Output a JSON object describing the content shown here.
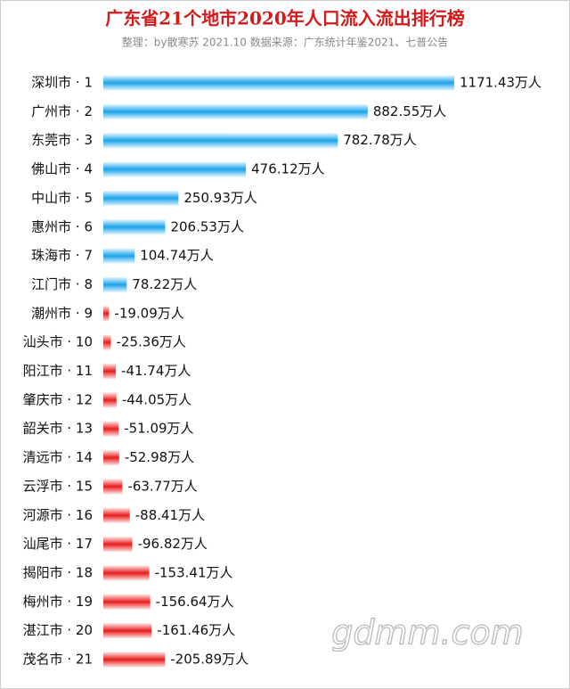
{
  "chart_data": {
    "type": "bar",
    "orientation": "horizontal",
    "title": "广东省21个地市2020年人口流入流出排行榜",
    "subtitle": "整理：by散寒苏  2021.10  数据来源：广东统计年鉴2021、七普公告",
    "watermark": "gdmm.com",
    "categories": [
      "深圳市 · 1",
      "广州市 · 2",
      "东莞市 · 3",
      "佛山市 · 4",
      "中山市 · 5",
      "惠州市 · 6",
      "珠海市 · 7",
      "江门市 · 8",
      "潮州市 · 9",
      "汕头市 · 10",
      "阳江市 · 11",
      "肇庆市 · 12",
      "韶关市 · 13",
      "清远市 · 14",
      "云浮市 · 15",
      "河源市 · 16",
      "汕尾市 · 17",
      "揭阳市 · 18",
      "梅州市 · 19",
      "湛江市 · 20",
      "茂名市 · 21"
    ],
    "values": [
      1171.43,
      882.55,
      782.78,
      476.12,
      250.93,
      206.53,
      104.74,
      78.22,
      -19.09,
      -25.36,
      -41.74,
      -44.05,
      -51.09,
      -52.98,
      -63.77,
      -88.41,
      -96.82,
      -153.41,
      -156.64,
      -161.46,
      -205.89
    ],
    "value_labels": [
      "1171.43万人",
      "882.55万人",
      "782.78万人",
      "476.12万人",
      "250.93万人",
      "206.53万人",
      "104.74万人",
      "78.22万人",
      "-19.09万人",
      "-25.36万人",
      "-41.74万人",
      "-44.05万人",
      "-51.09万人",
      "-52.98万人",
      "-63.77万人",
      "-88.41万人",
      "-96.82万人",
      "-153.41万人",
      "-156.64万人",
      "-161.46万人",
      "-205.89万人"
    ],
    "positive_color": "#1aa3e8",
    "negative_color": "#e81c1c"
  }
}
